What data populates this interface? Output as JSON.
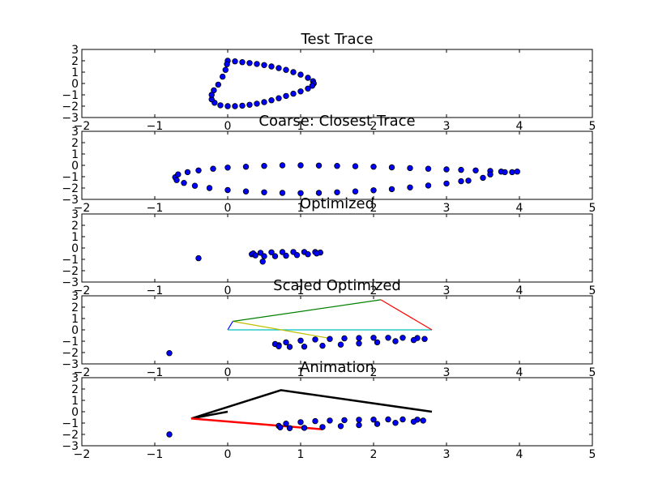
{
  "chart_data": [
    {
      "type": "scatter",
      "title": "Test Trace",
      "xlim": [
        -2,
        5
      ],
      "ylim": [
        -3,
        3
      ],
      "xticks": [
        "−2",
        "−1",
        "0",
        "1",
        "2",
        "3",
        "4",
        "5"
      ],
      "yticks": [
        "3",
        "2",
        "1",
        "0",
        "−1",
        "−2",
        "−3"
      ],
      "grid": false,
      "marker_color": "#0000ff",
      "series": [
        {
          "values": [
            [
              0.0,
              2.0
            ],
            [
              0.1,
              1.95
            ],
            [
              0.2,
              1.88
            ],
            [
              0.3,
              1.8
            ],
            [
              0.4,
              1.72
            ],
            [
              0.5,
              1.62
            ],
            [
              0.6,
              1.5
            ],
            [
              0.7,
              1.36
            ],
            [
              0.8,
              1.2
            ],
            [
              0.9,
              1.0
            ],
            [
              1.0,
              0.78
            ],
            [
              1.1,
              0.5
            ],
            [
              1.17,
              0.2
            ],
            [
              1.18,
              0.0
            ],
            [
              1.16,
              -0.2
            ],
            [
              1.1,
              -0.45
            ],
            [
              1.0,
              -0.7
            ],
            [
              0.9,
              -0.9
            ],
            [
              0.8,
              -1.1
            ],
            [
              0.7,
              -1.3
            ],
            [
              0.6,
              -1.48
            ],
            [
              0.5,
              -1.64
            ],
            [
              0.4,
              -1.78
            ],
            [
              0.3,
              -1.88
            ],
            [
              0.2,
              -1.96
            ],
            [
              0.1,
              -2.0
            ],
            [
              0.0,
              -2.0
            ],
            [
              -0.1,
              -1.92
            ],
            [
              -0.18,
              -1.7
            ],
            [
              -0.22,
              -1.4
            ],
            [
              -0.22,
              -1.0
            ],
            [
              -0.19,
              -0.6
            ],
            [
              -0.13,
              -0.1
            ],
            [
              -0.07,
              0.6
            ],
            [
              -0.03,
              1.2
            ],
            [
              -0.01,
              1.7
            ]
          ]
        }
      ]
    },
    {
      "type": "scatter",
      "title": "Coarse: Closest Trace",
      "xlim": [
        -2,
        5
      ],
      "ylim": [
        -3,
        3
      ],
      "xticks": [
        "−2",
        "−1",
        "0",
        "1",
        "2",
        "3",
        "4",
        "5"
      ],
      "yticks": [
        "3",
        "2",
        "1",
        "0",
        "−1",
        "−2",
        "−3"
      ],
      "grid": false,
      "marker_color": "#0000ff",
      "series": [
        {
          "values": [
            [
              -0.72,
              -1.05
            ],
            [
              -0.68,
              -0.8
            ],
            [
              -0.55,
              -0.6
            ],
            [
              -0.4,
              -0.45
            ],
            [
              -0.2,
              -0.3
            ],
            [
              0.0,
              -0.2
            ],
            [
              0.25,
              -0.12
            ],
            [
              0.5,
              -0.05
            ],
            [
              0.75,
              0.0
            ],
            [
              1.0,
              0.0
            ],
            [
              1.25,
              -0.02
            ],
            [
              1.5,
              -0.05
            ],
            [
              1.75,
              -0.08
            ],
            [
              2.0,
              -0.12
            ],
            [
              2.25,
              -0.18
            ],
            [
              2.5,
              -0.24
            ],
            [
              2.75,
              -0.3
            ],
            [
              3.0,
              -0.36
            ],
            [
              3.2,
              -0.4
            ],
            [
              3.4,
              -0.45
            ],
            [
              3.6,
              -0.5
            ],
            [
              3.75,
              -0.55
            ],
            [
              3.9,
              -0.6
            ],
            [
              3.97,
              -0.55
            ],
            [
              3.8,
              -0.6
            ],
            [
              3.6,
              -0.8
            ],
            [
              3.5,
              -1.1
            ],
            [
              3.3,
              -1.35
            ],
            [
              3.2,
              -1.4
            ],
            [
              3.0,
              -1.6
            ],
            [
              2.75,
              -1.78
            ],
            [
              2.5,
              -1.95
            ],
            [
              2.25,
              -2.1
            ],
            [
              2.0,
              -2.2
            ],
            [
              1.75,
              -2.3
            ],
            [
              1.5,
              -2.38
            ],
            [
              1.25,
              -2.43
            ],
            [
              1.0,
              -2.45
            ],
            [
              0.75,
              -2.43
            ],
            [
              0.5,
              -2.38
            ],
            [
              0.25,
              -2.3
            ],
            [
              0.0,
              -2.18
            ],
            [
              -0.25,
              -2.0
            ],
            [
              -0.45,
              -1.8
            ],
            [
              -0.6,
              -1.55
            ],
            [
              -0.7,
              -1.3
            ]
          ]
        }
      ]
    },
    {
      "type": "scatter",
      "title": "Optimized",
      "xlim": [
        -2,
        5
      ],
      "ylim": [
        -3,
        3
      ],
      "xticks": [
        "−2",
        "−1",
        "0",
        "1",
        "2",
        "3",
        "4",
        "5"
      ],
      "yticks": [
        "3",
        "2",
        "1",
        "0",
        "−1",
        "−2",
        "−3"
      ],
      "grid": false,
      "marker_color": "#0000ff",
      "series": [
        {
          "values": [
            [
              -0.4,
              -0.9
            ],
            [
              0.48,
              -1.2
            ],
            [
              0.33,
              -0.55
            ],
            [
              0.35,
              -0.48
            ],
            [
              0.45,
              -0.42
            ],
            [
              0.6,
              -0.38
            ],
            [
              0.75,
              -0.36
            ],
            [
              0.9,
              -0.35
            ],
            [
              1.05,
              -0.35
            ],
            [
              1.2,
              -0.36
            ],
            [
              1.27,
              -0.4
            ],
            [
              1.22,
              -0.48
            ],
            [
              1.1,
              -0.55
            ],
            [
              0.95,
              -0.62
            ],
            [
              0.8,
              -0.68
            ],
            [
              0.65,
              -0.72
            ],
            [
              0.5,
              -0.72
            ],
            [
              0.38,
              -0.65
            ]
          ]
        }
      ]
    },
    {
      "type": "scatter",
      "title": "Scaled Optimized",
      "xlim": [
        -2,
        5
      ],
      "ylim": [
        -3,
        3
      ],
      "xticks": [
        "−2",
        "−1",
        "0",
        "1",
        "2",
        "3",
        "4",
        "5"
      ],
      "yticks": [
        "3",
        "2",
        "1",
        "0",
        "−1",
        "−2",
        "−3"
      ],
      "grid": false,
      "marker_color": "#0000ff",
      "series": [
        {
          "values": [
            [
              -0.8,
              -2.05
            ],
            [
              0.7,
              -1.35
            ],
            [
              0.65,
              -1.25
            ],
            [
              0.8,
              -1.1
            ],
            [
              1.0,
              -0.95
            ],
            [
              1.2,
              -0.85
            ],
            [
              1.4,
              -0.8
            ],
            [
              1.6,
              -0.75
            ],
            [
              1.8,
              -0.72
            ],
            [
              2.0,
              -0.7
            ],
            [
              2.2,
              -0.7
            ],
            [
              2.4,
              -0.7
            ],
            [
              2.6,
              -0.72
            ],
            [
              2.7,
              -0.8
            ],
            [
              2.55,
              -0.9
            ],
            [
              2.3,
              -1.0
            ],
            [
              2.05,
              -1.1
            ],
            [
              1.8,
              -1.2
            ],
            [
              1.55,
              -1.3
            ],
            [
              1.3,
              -1.4
            ],
            [
              1.05,
              -1.48
            ],
            [
              0.85,
              -1.5
            ],
            [
              0.7,
              -1.45
            ]
          ]
        }
      ],
      "segments": [
        {
          "color": "#0000ff",
          "points": [
            [
              0.0,
              0.0
            ],
            [
              0.07,
              0.75
            ]
          ]
        },
        {
          "color": "#00bfbf",
          "points": [
            [
              0.0,
              0.0
            ],
            [
              2.8,
              0.0
            ]
          ]
        },
        {
          "color": "#bfbf00",
          "points": [
            [
              0.07,
              0.75
            ],
            [
              1.4,
              -0.75
            ]
          ]
        },
        {
          "color": "#008000",
          "points": [
            [
              0.07,
              0.75
            ],
            [
              2.1,
              2.65
            ]
          ]
        },
        {
          "color": "#ff0000",
          "points": [
            [
              2.1,
              2.65
            ],
            [
              2.8,
              0.0
            ]
          ]
        }
      ]
    },
    {
      "type": "scatter",
      "title": "Animation",
      "xlim": [
        -2,
        5
      ],
      "ylim": [
        -3,
        3
      ],
      "xticks": [
        "−2",
        "−1",
        "0",
        "1",
        "2",
        "3",
        "4",
        "5"
      ],
      "yticks": [
        "3",
        "2",
        "1",
        "0",
        "−1",
        "−2",
        "−3"
      ],
      "grid": false,
      "marker_color": "#0000ff",
      "series": [
        {
          "values": [
            [
              -0.8,
              -2.0
            ],
            [
              0.7,
              -1.25
            ],
            [
              0.8,
              -1.05
            ],
            [
              1.0,
              -0.92
            ],
            [
              1.2,
              -0.83
            ],
            [
              1.4,
              -0.78
            ],
            [
              1.6,
              -0.74
            ],
            [
              1.8,
              -0.71
            ],
            [
              2.0,
              -0.69
            ],
            [
              2.2,
              -0.68
            ],
            [
              2.4,
              -0.68
            ],
            [
              2.6,
              -0.7
            ],
            [
              2.68,
              -0.78
            ],
            [
              2.55,
              -0.88
            ],
            [
              2.3,
              -0.98
            ],
            [
              2.05,
              -1.08
            ],
            [
              1.8,
              -1.18
            ],
            [
              1.55,
              -1.27
            ],
            [
              1.3,
              -1.35
            ],
            [
              1.05,
              -1.42
            ],
            [
              0.85,
              -1.45
            ],
            [
              0.72,
              -1.38
            ]
          ]
        }
      ],
      "segments": [
        {
          "color": "#000000",
          "points": [
            [
              -0.5,
              -0.6
            ],
            [
              0.0,
              0.0
            ]
          ]
        },
        {
          "color": "#000000",
          "points": [
            [
              -0.5,
              -0.6
            ],
            [
              0.73,
              1.9
            ],
            [
              2.8,
              0.0
            ]
          ]
        },
        {
          "color": "#ff0000",
          "points": [
            [
              -0.5,
              -0.6
            ],
            [
              1.3,
              -1.55
            ]
          ]
        }
      ]
    }
  ]
}
